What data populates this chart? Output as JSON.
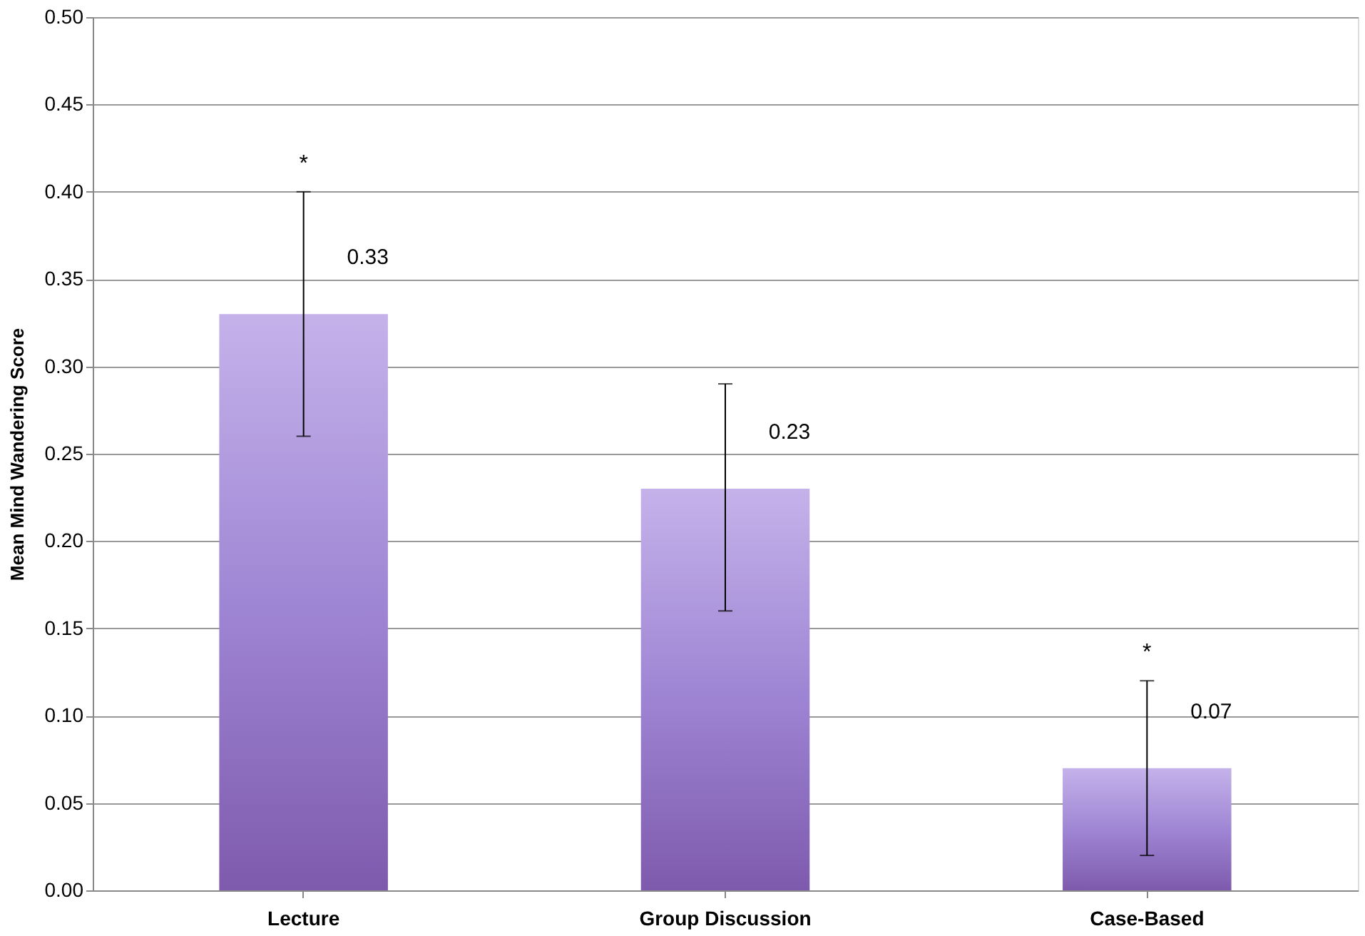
{
  "chart_data": {
    "type": "bar",
    "ylabel": "Mean Mind Wandering Score",
    "categories": [
      "Lecture",
      "Group Discussion",
      "Case-Based"
    ],
    "values": [
      0.33,
      0.23,
      0.07
    ],
    "errors": [
      [
        0.26,
        0.4
      ],
      [
        0.16,
        0.29
      ],
      [
        0.02,
        0.12
      ]
    ],
    "color": "#9f86d4",
    "data_labels": true,
    "annotations": [
      {
        "text": "*",
        "x": "Lecture",
        "y": 0.4
      },
      {
        "text": "*",
        "x": "Case-Based",
        "y": 0.12
      }
    ],
    "ylim": [
      0,
      0.5
    ],
    "yticks": [
      {
        "value": 0,
        "label": "0.00"
      },
      {
        "value": 0.05,
        "label": "0.05"
      },
      {
        "value": 0.1,
        "label": "0.10"
      },
      {
        "value": 0.15,
        "label": "0.15"
      },
      {
        "value": 0.2,
        "label": "0.20"
      },
      {
        "value": 0.25,
        "label": "0.25"
      },
      {
        "value": 0.3,
        "label": "0.30"
      },
      {
        "value": 0.35,
        "label": "0.35"
      },
      {
        "value": 0.4,
        "label": "0.40"
      },
      {
        "value": 0.45,
        "label": "0.45"
      },
      {
        "value": 0.5,
        "label": "0.50"
      }
    ],
    "grid": "y"
  }
}
